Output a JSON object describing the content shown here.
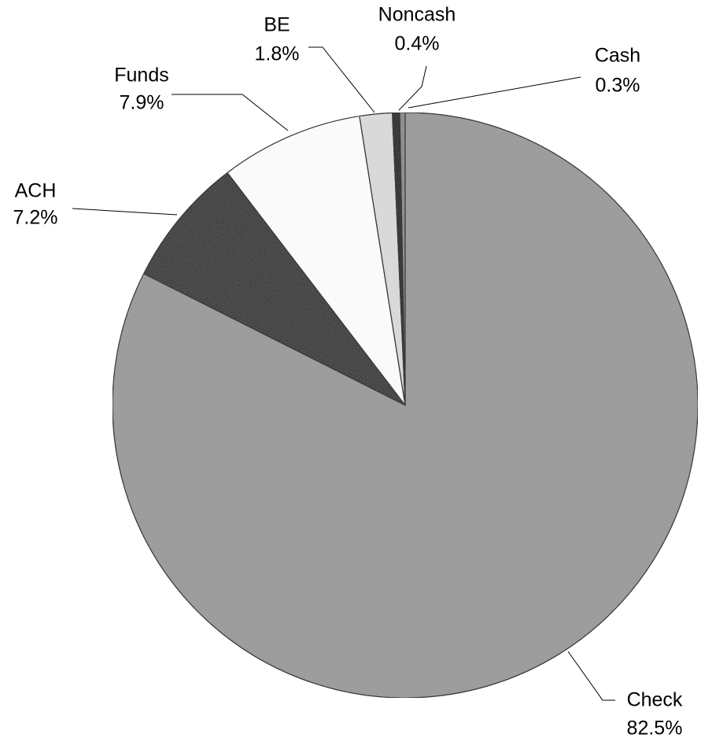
{
  "chart_data": {
    "type": "pie",
    "categories": [
      "Check",
      "ACH",
      "Funds",
      "BE",
      "Noncash",
      "Cash"
    ],
    "values": [
      82.5,
      7.2,
      7.9,
      1.8,
      0.4,
      0.3
    ],
    "value_labels": [
      "82.5%",
      "7.2%",
      "7.9%",
      "1.8%",
      "0.4%",
      "0.3%"
    ],
    "colors": [
      "#9a9a9a",
      "#2e2e2e",
      "#ffffff",
      "#dcdcdc",
      "#111111",
      "#8a8a8a"
    ]
  }
}
